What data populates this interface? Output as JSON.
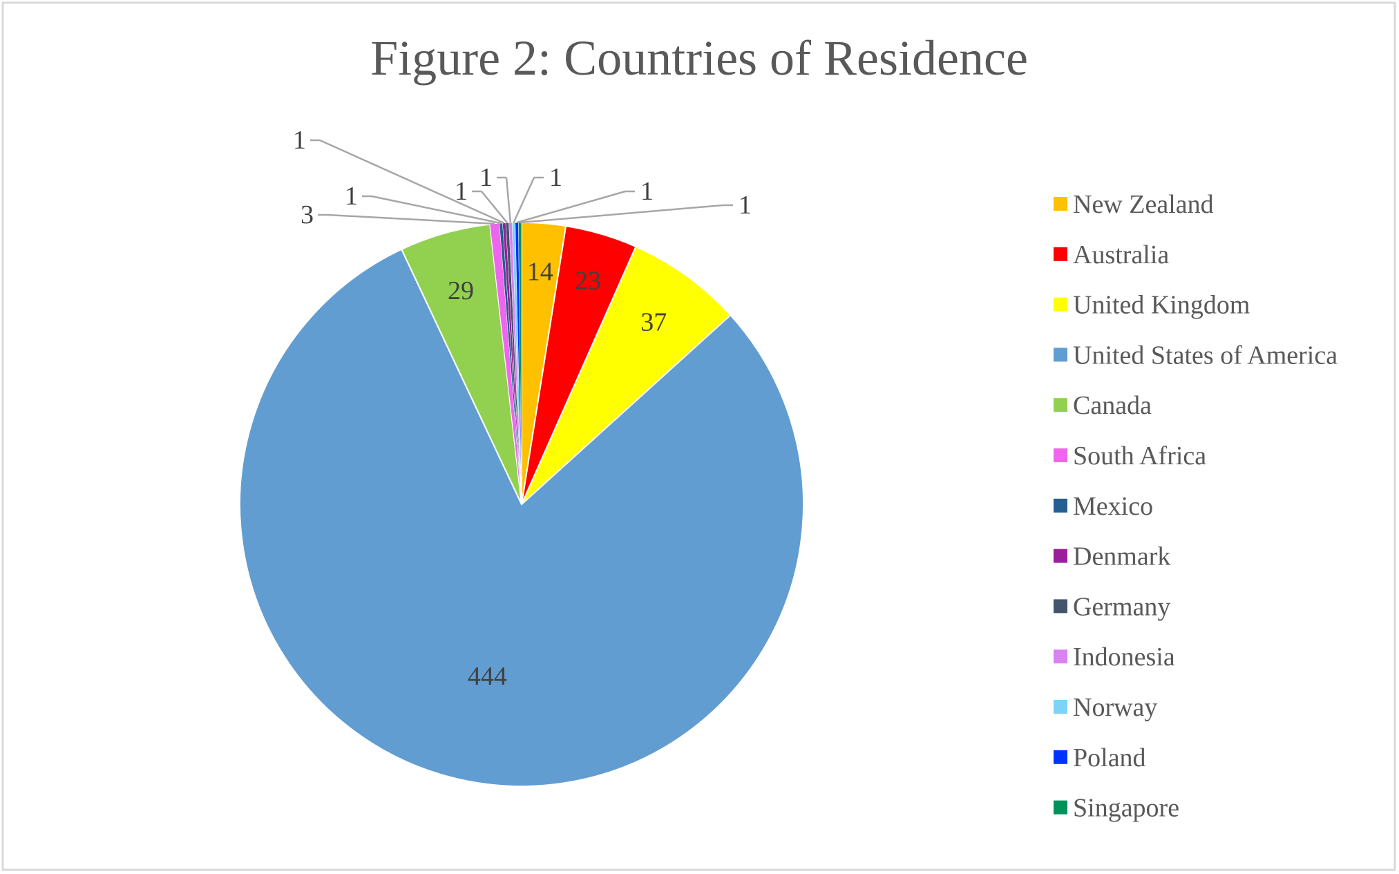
{
  "chart_data": {
    "type": "pie",
    "title": "Figure 2: Countries of Residence",
    "start_angle_deg": 0,
    "direction": "clockwise",
    "legend_position": "right",
    "slices": [
      {
        "label": "New Zealand",
        "value": 14,
        "color": "#FFC000"
      },
      {
        "label": "Australia",
        "value": 23,
        "color": "#FF0000"
      },
      {
        "label": "United Kingdom",
        "value": 37,
        "color": "#FFFF00"
      },
      {
        "label": "United States of America",
        "value": 444,
        "color": "#629DD1"
      },
      {
        "label": "Canada",
        "value": 29,
        "color": "#92D050"
      },
      {
        "label": "South Africa",
        "value": 3,
        "color": "#EE66EE"
      },
      {
        "label": "Mexico",
        "value": 1,
        "color": "#255E91"
      },
      {
        "label": "Denmark",
        "value": 1,
        "color": "#9A1F9A"
      },
      {
        "label": "Germany",
        "value": 1,
        "color": "#44546A"
      },
      {
        "label": "Indonesia",
        "value": 1,
        "color": "#D883F0"
      },
      {
        "label": "Norway",
        "value": 1,
        "color": "#7DD3F7"
      },
      {
        "label": "Poland",
        "value": 1,
        "color": "#0033FF"
      },
      {
        "label": "Singapore",
        "value": 1,
        "color": "#00925A"
      }
    ]
  },
  "colors": {
    "background": "#FFFFFF",
    "border": "#D9D9D9",
    "title": "#595959",
    "data_label": "#404040",
    "leader_line": "#A6A6A6"
  }
}
